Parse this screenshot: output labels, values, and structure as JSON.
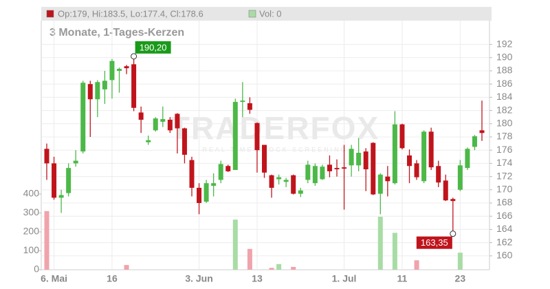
{
  "chart_data": {
    "type": "candlestick",
    "legend_text": "Op:179, Hi:183.5, Lo:177.4, Cl:178.6",
    "volume_legend_text": "Vol: 0",
    "subtitle": "3 Monate, 1-Tages-Kerzen",
    "watermark": "TRADERFOX",
    "watermark_sub": "REAL TIME STOCK SCREENING",
    "categories": [
      null,
      "6. Mai",
      null,
      null,
      null,
      null,
      null,
      null,
      null,
      "16",
      null,
      null,
      null,
      null,
      null,
      null,
      null,
      null,
      null,
      null,
      null,
      "3. Jun",
      null,
      null,
      null,
      null,
      null,
      null,
      null,
      "13",
      null,
      null,
      null,
      null,
      null,
      null,
      null,
      null,
      null,
      null,
      null,
      "1. Jul",
      null,
      null,
      null,
      null,
      null,
      null,
      null,
      "11",
      null,
      null,
      null,
      null,
      null,
      null,
      null,
      "23",
      null,
      null,
      null
    ],
    "open": [
      176.2,
      174,
      168.8,
      169.5,
      174,
      175.8,
      186,
      183.7,
      185.2,
      186.6,
      188,
      188.7,
      189,
      181.7,
      177.2,
      179,
      180.3,
      180.6,
      181.5,
      179.3,
      174.5,
      170.3,
      168.2,
      170.6,
      171.5,
      173.6,
      173,
      183.3,
      183.1,
      180.1,
      176.8,
      172.2,
      171.6,
      171.2,
      172.2,
      169.4,
      171.5,
      171,
      171.6,
      173.8,
      173.3,
      173.4,
      173.7,
      173.7,
      175.8,
      177.1,
      169.4,
      172,
      171,
      179.9,
      175.2,
      174,
      171.3,
      178.8,
      173.6,
      171.4,
      168.6,
      170,
      173.3,
      176.5,
      179
    ],
    "high": [
      177,
      175,
      170,
      174,
      176,
      186.5,
      186.5,
      186.6,
      188,
      189.8,
      188.5,
      188.9,
      190.2,
      182.6,
      178.2,
      181,
      182.6,
      181,
      181.6,
      179.4,
      175,
      171,
      171.5,
      172.5,
      174.4,
      173.8,
      183.8,
      186.3,
      184,
      180.2,
      176.8,
      172.3,
      172.3,
      171.8,
      172.3,
      170.3,
      174.4,
      174,
      173.8,
      175.2,
      174.6,
      176.8,
      176.8,
      177.8,
      176.3,
      177.2,
      172.5,
      173.6,
      181.9,
      180,
      176.1,
      174.5,
      179,
      179.4,
      174.4,
      172.3,
      168.8,
      174.5,
      176.4,
      178.3,
      183.5
    ],
    "low": [
      171.5,
      168.5,
      166.5,
      169,
      173.5,
      175.5,
      178,
      181,
      183,
      183.8,
      184.7,
      187.5,
      181.9,
      178.6,
      176.8,
      178.8,
      179.5,
      178.6,
      175.5,
      174,
      169,
      166.3,
      168,
      169,
      171,
      172.7,
      173,
      181,
      181.5,
      172.6,
      171.8,
      168.8,
      170.8,
      170.4,
      169.3,
      168.9,
      171,
      170.6,
      171.5,
      171.9,
      172,
      167,
      172,
      172.8,
      169.8,
      169.2,
      166.3,
      169,
      170.8,
      176.1,
      171,
      171.5,
      171,
      173,
      170.4,
      168.3,
      163.35,
      169.8,
      173,
      176,
      177.4
    ],
    "close": [
      174,
      168.8,
      169.2,
      173.3,
      174.4,
      186.2,
      183.7,
      186.3,
      186.5,
      189.5,
      188.3,
      188.4,
      182.4,
      180.6,
      177.5,
      180.8,
      180.7,
      179,
      179.3,
      175.3,
      170.3,
      168,
      171,
      171,
      173.9,
      172.8,
      183.3,
      183.5,
      182.1,
      176,
      172.6,
      170.3,
      171.9,
      171.5,
      169.4,
      169.9,
      173.8,
      173.6,
      173.5,
      172.8,
      173.1,
      173.2,
      176.2,
      175.6,
      173.1,
      169.3,
      172.3,
      171.3,
      179.9,
      176.3,
      173.6,
      171.9,
      178.8,
      173.4,
      171.1,
      168.4,
      168.3,
      173.7,
      176.2,
      178.1,
      178.6
    ],
    "volume": [
      310,
      0,
      0,
      0,
      0,
      0,
      0,
      0,
      0,
      0,
      0,
      25,
      0,
      0,
      0,
      0,
      0,
      0,
      0,
      0,
      0,
      0,
      0,
      0,
      0,
      0,
      265,
      0,
      110,
      0,
      0,
      10,
      30,
      0,
      15,
      0,
      0,
      0,
      0,
      0,
      0,
      0,
      0,
      0,
      0,
      0,
      280,
      0,
      195,
      0,
      0,
      50,
      0,
      0,
      0,
      0,
      0,
      90,
      0,
      0,
      0
    ],
    "up_color": "#4cb848",
    "down_color": "#c0141c",
    "up_volume_color": "#a8dca5",
    "down_volume_color": "#f0a3ab",
    "ylim": [
      157.9,
      195.6
    ],
    "yticks": [
      160,
      162,
      164,
      166,
      168,
      170,
      172,
      174,
      176,
      178,
      180,
      182,
      184,
      186,
      188,
      190,
      192
    ],
    "vlim": [
      0,
      400
    ],
    "vticks": [
      0,
      100,
      200,
      300,
      400
    ],
    "annotations": [
      {
        "index": 12,
        "value": 190.2,
        "label": "190,20",
        "color": "#1a9a1a"
      },
      {
        "index": 56,
        "value": 163.35,
        "label": "163,35",
        "color": "#c0141c"
      }
    ],
    "grid": true
  }
}
